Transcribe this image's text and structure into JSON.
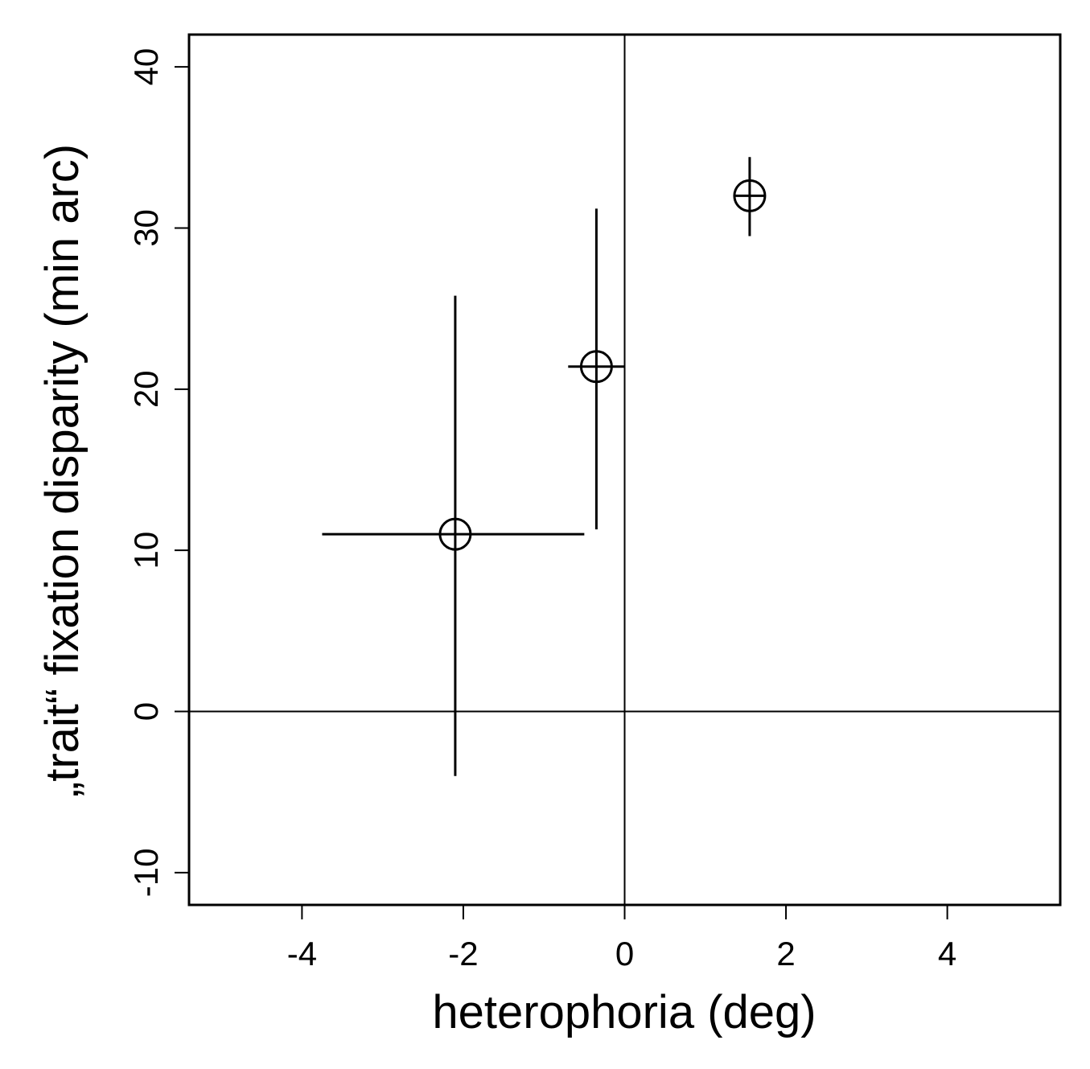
{
  "chart_data": {
    "type": "scatter",
    "title": "",
    "xlabel": "heterophoria (deg)",
    "ylabel": "„trait“ fixation disparity (min arc)",
    "xlim": [
      -5.4,
      5.4
    ],
    "ylim": [
      -12,
      42
    ],
    "xticks": [
      -4,
      -2,
      0,
      2,
      4
    ],
    "yticks": [
      -10,
      0,
      10,
      20,
      30,
      40
    ],
    "reference_lines": {
      "x": 0,
      "y": 0
    },
    "grid": false,
    "points": [
      {
        "x": -2.1,
        "y": 11.0,
        "x_err_low": -3.75,
        "x_err_high": -0.5,
        "y_err_low": -4.0,
        "y_err_high": 25.8
      },
      {
        "x": -0.35,
        "y": 21.4,
        "x_err_low": -0.7,
        "x_err_high": 0.0,
        "y_err_low": 11.3,
        "y_err_high": 31.2
      },
      {
        "x": 1.55,
        "y": 32.0,
        "x_err_low": 1.35,
        "x_err_high": 1.75,
        "y_err_low": 29.5,
        "y_err_high": 34.4
      }
    ],
    "colors": {
      "ink": "#000000",
      "background": "#ffffff"
    }
  }
}
